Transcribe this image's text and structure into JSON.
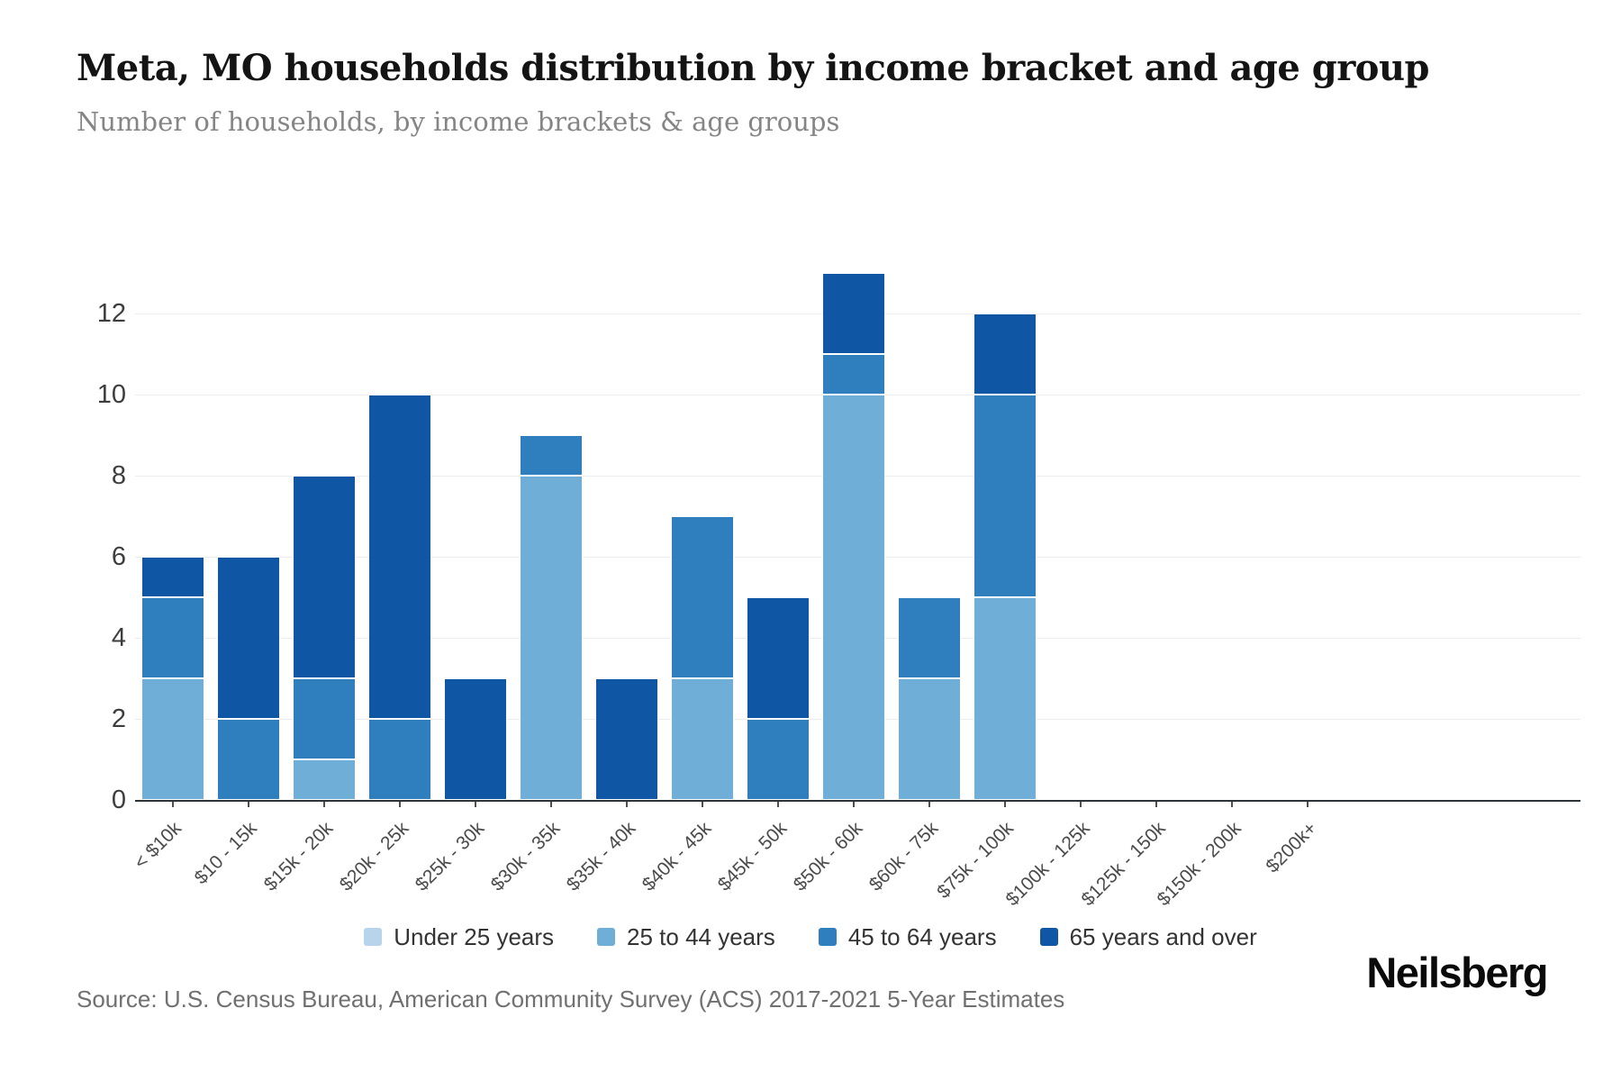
{
  "header": {
    "title": "Meta, MO households distribution by income bracket and age group",
    "subtitle": "Number of households, by income brackets & age groups"
  },
  "chart_data": {
    "type": "bar",
    "stacked": true,
    "title": "Meta, MO households distribution by income bracket and age group",
    "subtitle": "Number of households, by income brackets & age groups",
    "xlabel": "",
    "ylabel": "",
    "categories": [
      "< $10k",
      "$10 - 15k",
      "$15k - 20k",
      "$20k - 25k",
      "$25k - 30k",
      "$30k - 35k",
      "$35k - 40k",
      "$40k - 45k",
      "$45k - 50k",
      "$50k - 60k",
      "$60k - 75k",
      "$75k - 100k",
      "$100k - 125k",
      "$125k - 150k",
      "$150k - 200k",
      "$200k+"
    ],
    "series": [
      {
        "name": "Under 25 years",
        "color": "#b7d4ea",
        "values": [
          0,
          0,
          0,
          0,
          0,
          0,
          0,
          0,
          0,
          0,
          0,
          0,
          0,
          0,
          0,
          0
        ]
      },
      {
        "name": "25 to 44 years",
        "color": "#6fafd7",
        "values": [
          3,
          0,
          1,
          0,
          0,
          8,
          0,
          3,
          0,
          10,
          3,
          5,
          0,
          0,
          0,
          0
        ]
      },
      {
        "name": "45 to 64 years",
        "color": "#2f7fbe",
        "values": [
          2,
          2,
          2,
          2,
          0,
          1,
          0,
          4,
          2,
          1,
          2,
          5,
          0,
          0,
          0,
          0
        ]
      },
      {
        "name": "65 years and over",
        "color": "#0f56a5",
        "values": [
          1,
          4,
          5,
          8,
          3,
          0,
          3,
          0,
          3,
          2,
          0,
          2,
          0,
          0,
          0,
          0
        ]
      }
    ],
    "totals": [
      6,
      6,
      8,
      10,
      3,
      9,
      3,
      7,
      5,
      13,
      5,
      12,
      0,
      0,
      0,
      0
    ],
    "yticks": [
      0,
      2,
      4,
      6,
      8,
      10,
      12
    ],
    "ylim": [
      0,
      13
    ],
    "grid": true,
    "legend_position": "bottom"
  },
  "footer": {
    "source": "Source: U.S. Census Bureau, American Community Survey (ACS) 2017-2021 5-Year Estimates",
    "logo": "Neilsberg"
  }
}
